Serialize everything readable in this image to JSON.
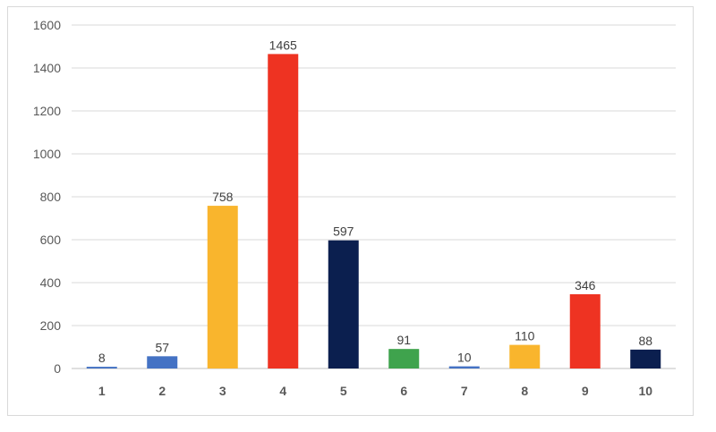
{
  "chart_data": {
    "type": "bar",
    "title": "",
    "xlabel": "",
    "ylabel": "",
    "categories": [
      "1",
      "2",
      "3",
      "4",
      "5",
      "6",
      "7",
      "8",
      "9",
      "10"
    ],
    "values": [
      8,
      57,
      758,
      1465,
      597,
      91,
      10,
      110,
      346,
      88
    ],
    "colors": [
      "#4472c4",
      "#4472c4",
      "#f9b52d",
      "#ee3322",
      "#0b1f4f",
      "#3fa34d",
      "#4472c4",
      "#f9b52d",
      "#ee3322",
      "#0b1f4f"
    ],
    "ylim": [
      0,
      1600
    ],
    "yticks": [
      0,
      200,
      400,
      600,
      800,
      1000,
      1200,
      1400,
      1600
    ],
    "grid": true,
    "data_labels": true,
    "legend": false
  }
}
